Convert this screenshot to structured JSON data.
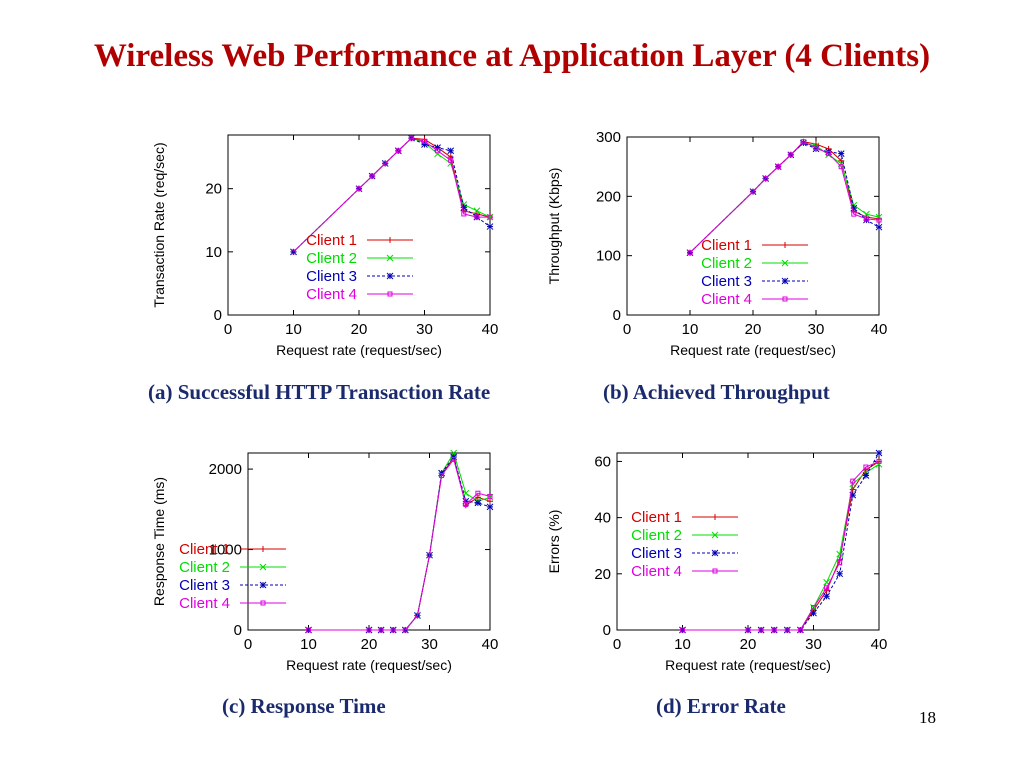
{
  "slide": {
    "title": "Wireless Web Performance at Application Layer (4 Clients)",
    "page_number": "18"
  },
  "colors": {
    "client1": "#d40000",
    "client2": "#00dd00",
    "client3": "#0000b4",
    "client4": "#e000e0",
    "axis": "#000000",
    "caption": "#1a2a6c",
    "title": "#b00000"
  },
  "chart_data": [
    {
      "id": "a",
      "type": "line",
      "caption": "(a) Successful HTTP Transaction Rate",
      "xlabel": "Request rate (request/sec)",
      "ylabel": "Transaction Rate (req/sec)",
      "xlim": [
        0,
        40
      ],
      "ylim": [
        0,
        28.5
      ],
      "xticks": [
        0,
        10,
        20,
        30,
        40
      ],
      "yticks": [
        0,
        10,
        20
      ],
      "legend_position": "right",
      "series": [
        {
          "name": "Client 1",
          "x": [
            10,
            20,
            22,
            24,
            26,
            28,
            30,
            32,
            34,
            36,
            38,
            40
          ],
          "y": [
            10,
            20,
            22,
            24,
            26,
            28,
            27.8,
            26.5,
            25,
            16.5,
            16,
            15.5
          ]
        },
        {
          "name": "Client 2",
          "x": [
            10,
            20,
            22,
            24,
            26,
            28,
            30,
            32,
            34,
            36,
            38,
            40
          ],
          "y": [
            10,
            20,
            22,
            24,
            26,
            28,
            27.3,
            25.5,
            24,
            17.5,
            16.5,
            15.5
          ]
        },
        {
          "name": "Client 3",
          "x": [
            10,
            20,
            22,
            24,
            26,
            28,
            30,
            32,
            34,
            36,
            38,
            40
          ],
          "y": [
            10,
            20,
            22,
            24,
            26,
            28,
            27,
            26.5,
            26,
            17,
            15.5,
            14
          ]
        },
        {
          "name": "Client 4",
          "x": [
            10,
            20,
            22,
            24,
            26,
            28,
            30,
            32,
            34,
            36,
            38,
            40
          ],
          "y": [
            10,
            20,
            22,
            24,
            26,
            28,
            27.5,
            26,
            24.5,
            16,
            15.5,
            15.5
          ]
        }
      ]
    },
    {
      "id": "b",
      "type": "line",
      "caption": "(b) Achieved Throughput",
      "xlabel": "Request rate (request/sec)",
      "ylabel": "Throughput (Kbps)",
      "xlim": [
        0,
        40
      ],
      "ylim": [
        0,
        300
      ],
      "xticks": [
        0,
        10,
        20,
        30,
        40
      ],
      "yticks": [
        0,
        100,
        200,
        300
      ],
      "legend_position": "right",
      "series": [
        {
          "name": "Client 1",
          "x": [
            10,
            20,
            22,
            24,
            26,
            28,
            30,
            32,
            34,
            36,
            38,
            40
          ],
          "y": [
            105,
            208,
            230,
            250,
            270,
            292,
            288,
            280,
            260,
            175,
            165,
            162
          ]
        },
        {
          "name": "Client 2",
          "x": [
            10,
            20,
            22,
            24,
            26,
            28,
            30,
            32,
            34,
            36,
            38,
            40
          ],
          "y": [
            105,
            208,
            230,
            250,
            270,
            290,
            285,
            270,
            255,
            185,
            170,
            165
          ]
        },
        {
          "name": "Client 3",
          "x": [
            10,
            20,
            22,
            24,
            26,
            28,
            30,
            32,
            34,
            36,
            38,
            40
          ],
          "y": [
            105,
            208,
            230,
            250,
            270,
            290,
            280,
            275,
            272,
            180,
            160,
            148
          ]
        },
        {
          "name": "Client 4",
          "x": [
            10,
            20,
            22,
            24,
            26,
            28,
            30,
            32,
            34,
            36,
            38,
            40
          ],
          "y": [
            105,
            208,
            230,
            250,
            270,
            292,
            282,
            272,
            250,
            170,
            162,
            160
          ]
        }
      ]
    },
    {
      "id": "c",
      "type": "line",
      "caption": "(c) Response Time",
      "xlabel": "Request rate (request/sec)",
      "ylabel": "Response Time (ms)",
      "xlim": [
        0,
        40
      ],
      "ylim": [
        0,
        2200
      ],
      "xticks": [
        0,
        10,
        20,
        30,
        40
      ],
      "yticks": [
        0,
        1000,
        2000
      ],
      "legend_position": "left",
      "series": [
        {
          "name": "Client 1",
          "x": [
            10,
            20,
            22,
            24,
            26,
            28,
            30,
            32,
            34,
            36,
            38,
            40
          ],
          "y": [
            0,
            0,
            0,
            0,
            0,
            180,
            930,
            1920,
            2150,
            1550,
            1650,
            1600
          ]
        },
        {
          "name": "Client 2",
          "x": [
            10,
            20,
            22,
            24,
            26,
            28,
            30,
            32,
            34,
            36,
            38,
            40
          ],
          "y": [
            0,
            0,
            0,
            0,
            0,
            180,
            930,
            1950,
            2200,
            1700,
            1600,
            1650
          ]
        },
        {
          "name": "Client 3",
          "x": [
            10,
            20,
            22,
            24,
            26,
            28,
            30,
            32,
            34,
            36,
            38,
            40
          ],
          "y": [
            0,
            0,
            0,
            0,
            0,
            180,
            930,
            1950,
            2150,
            1600,
            1580,
            1530
          ]
        },
        {
          "name": "Client 4",
          "x": [
            10,
            20,
            22,
            24,
            26,
            28,
            30,
            32,
            34,
            36,
            38,
            40
          ],
          "y": [
            0,
            0,
            0,
            0,
            0,
            180,
            930,
            1920,
            2120,
            1560,
            1700,
            1660
          ]
        }
      ]
    },
    {
      "id": "d",
      "type": "line",
      "caption": "(d) Error Rate",
      "xlabel": "Request rate (request/sec)",
      "ylabel": "Errors (%)",
      "xlim": [
        0,
        40
      ],
      "ylim": [
        0,
        63
      ],
      "xticks": [
        0,
        10,
        20,
        30,
        40
      ],
      "yticks": [
        0,
        20,
        40,
        60
      ],
      "legend_position": "center",
      "series": [
        {
          "name": "Client 1",
          "x": [
            10,
            20,
            22,
            24,
            26,
            28,
            30,
            32,
            34,
            36,
            38,
            40
          ],
          "y": [
            0,
            0,
            0,
            0,
            0,
            0,
            7,
            14,
            25,
            50,
            57,
            60
          ]
        },
        {
          "name": "Client 2",
          "x": [
            10,
            20,
            22,
            24,
            26,
            28,
            30,
            32,
            34,
            36,
            38,
            40
          ],
          "y": [
            0,
            0,
            0,
            0,
            0,
            0,
            8,
            17,
            27,
            52,
            56,
            59
          ]
        },
        {
          "name": "Client 3",
          "x": [
            10,
            20,
            22,
            24,
            26,
            28,
            30,
            32,
            34,
            36,
            38,
            40
          ],
          "y": [
            0,
            0,
            0,
            0,
            0,
            0,
            6,
            12,
            20,
            48,
            55,
            63
          ]
        },
        {
          "name": "Client 4",
          "x": [
            10,
            20,
            22,
            24,
            26,
            28,
            30,
            32,
            34,
            36,
            38,
            40
          ],
          "y": [
            0,
            0,
            0,
            0,
            0,
            0,
            8,
            15,
            24,
            53,
            58,
            60
          ]
        }
      ]
    }
  ]
}
